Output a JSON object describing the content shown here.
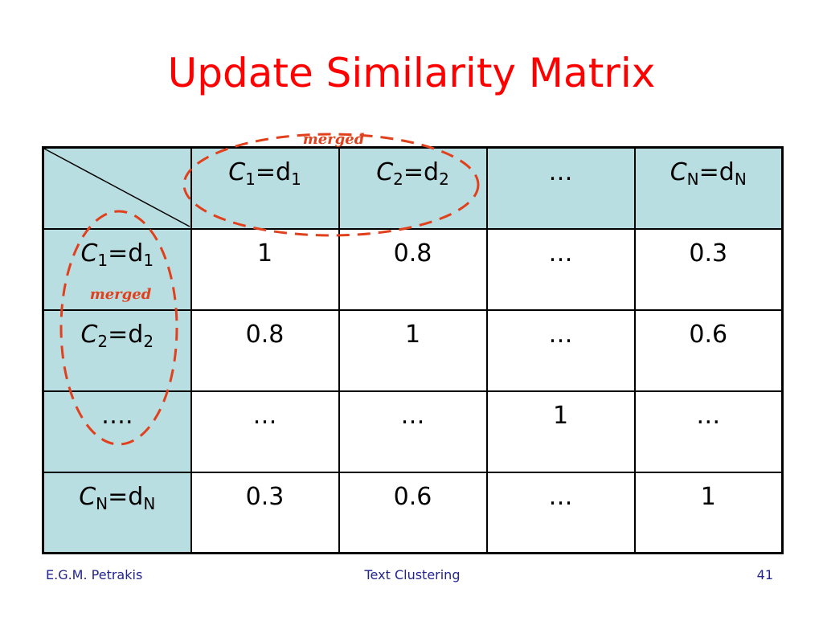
{
  "title": "Update Similarity Matrix",
  "annotations": {
    "top": "merged",
    "left": "merged"
  },
  "table": {
    "header": [
      [
        "C",
        "1",
        "=d",
        "1"
      ],
      [
        "C",
        "2",
        "=d",
        "2"
      ],
      "…",
      [
        "C",
        "N",
        "=d",
        "N"
      ]
    ],
    "rows": [
      {
        "label": [
          "C",
          "1",
          "=d",
          "1"
        ],
        "cells": [
          "1",
          "0.8",
          "…",
          "0.3"
        ]
      },
      {
        "label": [
          "C",
          "2",
          "=d",
          "2"
        ],
        "cells": [
          "0.8",
          "1",
          "…",
          "0.6"
        ]
      },
      {
        "label": "….",
        "cells": [
          "…",
          "…",
          "1",
          "…"
        ]
      },
      {
        "label": [
          "C",
          "N",
          "=d",
          "N"
        ],
        "cells": [
          "0.3",
          "0.6",
          "…",
          "1"
        ]
      }
    ]
  },
  "footer": {
    "author": "E.G.M. Petrakis",
    "topic": "Text Clustering",
    "page": "41"
  }
}
